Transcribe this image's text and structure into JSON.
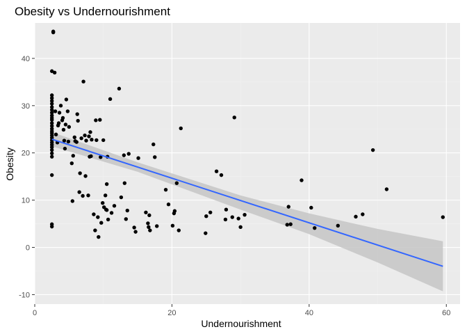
{
  "chart_data": {
    "type": "scatter",
    "title": "Obesity vs Undernourishment",
    "xlabel": "Undernourishment",
    "ylabel": "Obesity",
    "xlim": [
      0,
      62
    ],
    "ylim": [
      -12,
      47.5
    ],
    "x_ticks": [
      0,
      20,
      40,
      60
    ],
    "y_ticks": [
      -10,
      0,
      10,
      20,
      30,
      40
    ],
    "grid": true,
    "legend": "none",
    "colors": {
      "panel": "#ebebeb",
      "points": "#000000",
      "trend_line": "#3366ff",
      "confidence_band": "#c6c6c6"
    },
    "points": [
      [
        2.7,
        45.7
      ],
      [
        2.7,
        45.5
      ],
      [
        2.5,
        37.3
      ],
      [
        2.9,
        37.0
      ],
      [
        2.5,
        32.2
      ],
      [
        2.5,
        31.6
      ],
      [
        2.5,
        31.0
      ],
      [
        2.5,
        30.4
      ],
      [
        2.5,
        29.7
      ],
      [
        2.5,
        29.1
      ],
      [
        2.5,
        28.5
      ],
      [
        2.5,
        27.9
      ],
      [
        2.5,
        27.4
      ],
      [
        2.5,
        27.0
      ],
      [
        2.5,
        26.3
      ],
      [
        2.5,
        25.7
      ],
      [
        2.5,
        25.1
      ],
      [
        2.5,
        24.6
      ],
      [
        2.5,
        24.2
      ],
      [
        2.5,
        23.7
      ],
      [
        2.5,
        23.2
      ],
      [
        2.5,
        22.7
      ],
      [
        2.5,
        22.2
      ],
      [
        2.5,
        21.7
      ],
      [
        2.5,
        21.2
      ],
      [
        2.5,
        20.6
      ],
      [
        2.5,
        19.9
      ],
      [
        2.5,
        19.2
      ],
      [
        2.5,
        15.3
      ],
      [
        2.5,
        4.9
      ],
      [
        2.5,
        4.4
      ],
      [
        3.0,
        28.8
      ],
      [
        3.1,
        23.9
      ],
      [
        3.3,
        22.2
      ],
      [
        3.4,
        25.8
      ],
      [
        3.5,
        26.3
      ],
      [
        3.6,
        28.5
      ],
      [
        3.8,
        30.0
      ],
      [
        4.0,
        26.9
      ],
      [
        4.1,
        27.4
      ],
      [
        4.2,
        24.9
      ],
      [
        4.3,
        22.6
      ],
      [
        4.4,
        20.9
      ],
      [
        4.5,
        26.0
      ],
      [
        4.6,
        31.3
      ],
      [
        4.8,
        28.8
      ],
      [
        4.9,
        22.4
      ],
      [
        5.0,
        25.5
      ],
      [
        5.4,
        17.8
      ],
      [
        5.5,
        9.8
      ],
      [
        5.6,
        19.4
      ],
      [
        5.8,
        23.3
      ],
      [
        5.9,
        22.5
      ],
      [
        6.1,
        22.3
      ],
      [
        6.2,
        28.2
      ],
      [
        6.3,
        26.8
      ],
      [
        6.5,
        11.7
      ],
      [
        6.6,
        15.7
      ],
      [
        6.8,
        23.1
      ],
      [
        7.0,
        10.9
      ],
      [
        7.1,
        35.1
      ],
      [
        7.3,
        23.7
      ],
      [
        7.4,
        15.1
      ],
      [
        7.5,
        22.6
      ],
      [
        7.8,
        11.0
      ],
      [
        7.9,
        23.5
      ],
      [
        8.0,
        19.2
      ],
      [
        8.1,
        24.4
      ],
      [
        8.2,
        19.3
      ],
      [
        8.3,
        22.8
      ],
      [
        8.6,
        7.0
      ],
      [
        8.8,
        3.6
      ],
      [
        8.9,
        26.9
      ],
      [
        9.0,
        22.7
      ],
      [
        9.2,
        6.4
      ],
      [
        9.3,
        2.2
      ],
      [
        9.5,
        27.0
      ],
      [
        9.6,
        19.1
      ],
      [
        9.7,
        5.2
      ],
      [
        9.9,
        9.4
      ],
      [
        10.0,
        22.7
      ],
      [
        10.1,
        8.5
      ],
      [
        10.3,
        11.0
      ],
      [
        10.4,
        8.0
      ],
      [
        10.5,
        7.9
      ],
      [
        10.5,
        13.4
      ],
      [
        10.6,
        19.2
      ],
      [
        10.7,
        5.9
      ],
      [
        11.0,
        31.4
      ],
      [
        11.2,
        7.3
      ],
      [
        11.6,
        8.8
      ],
      [
        12.3,
        33.6
      ],
      [
        12.6,
        10.6
      ],
      [
        13.0,
        19.5
      ],
      [
        13.1,
        13.6
      ],
      [
        13.3,
        6.0
      ],
      [
        13.5,
        7.8
      ],
      [
        13.7,
        19.8
      ],
      [
        14.5,
        4.2
      ],
      [
        14.7,
        3.3
      ],
      [
        15.1,
        18.9
      ],
      [
        16.2,
        7.4
      ],
      [
        16.5,
        5.1
      ],
      [
        16.6,
        4.3
      ],
      [
        16.7,
        6.8
      ],
      [
        16.8,
        3.6
      ],
      [
        17.3,
        21.8
      ],
      [
        17.5,
        19.1
      ],
      [
        17.8,
        4.5
      ],
      [
        19.1,
        12.2
      ],
      [
        19.5,
        9.1
      ],
      [
        20.1,
        4.6
      ],
      [
        20.3,
        7.2
      ],
      [
        20.4,
        7.7
      ],
      [
        20.7,
        13.6
      ],
      [
        21.0,
        3.6
      ],
      [
        21.3,
        25.2
      ],
      [
        24.9,
        3.0
      ],
      [
        25.0,
        6.6
      ],
      [
        25.6,
        7.4
      ],
      [
        26.5,
        16.1
      ],
      [
        27.2,
        15.3
      ],
      [
        27.8,
        5.9
      ],
      [
        27.9,
        8.0
      ],
      [
        28.8,
        6.4
      ],
      [
        29.1,
        27.5
      ],
      [
        29.7,
        6.1
      ],
      [
        30.0,
        4.3
      ],
      [
        30.6,
        6.9
      ],
      [
        36.8,
        4.8
      ],
      [
        37.0,
        8.6
      ],
      [
        37.3,
        4.9
      ],
      [
        38.9,
        14.2
      ],
      [
        40.3,
        8.4
      ],
      [
        40.8,
        4.1
      ],
      [
        44.2,
        4.6
      ],
      [
        46.8,
        6.5
      ],
      [
        47.8,
        7.0
      ],
      [
        49.3,
        20.6
      ],
      [
        51.3,
        12.3
      ],
      [
        59.5,
        6.4
      ]
    ],
    "trend": {
      "x_start": 2.5,
      "y_start": 22.9,
      "x_end": 59.5,
      "y_end": -4.0,
      "band": [
        {
          "x": 2.5,
          "lower": 21.4,
          "upper": 24.4
        },
        {
          "x": 15,
          "lower": 16.0,
          "upper": 18.0
        },
        {
          "x": 30,
          "lower": 8.0,
          "upper": 11.0
        },
        {
          "x": 40,
          "lower": 2.8,
          "upper": 7.2
        },
        {
          "x": 50,
          "lower": -3.2,
          "upper": 3.9
        },
        {
          "x": 59.5,
          "lower": -9.3,
          "upper": 1.3
        }
      ]
    }
  }
}
